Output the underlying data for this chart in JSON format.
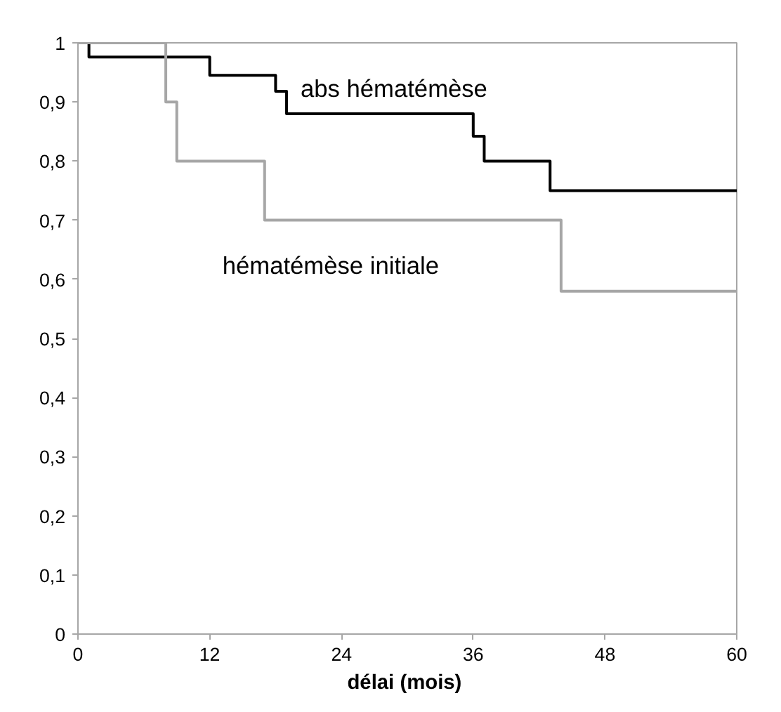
{
  "chart_data": {
    "type": "step",
    "xlabel": "délai  (mois)",
    "xlim": [
      0,
      60
    ],
    "xticks": [
      0,
      12,
      24,
      36,
      48,
      60
    ],
    "ylim": [
      0,
      1
    ],
    "yticks": [
      0,
      {
        "value": 0.1,
        "label": "0,1"
      },
      {
        "value": 0.2,
        "label": "0,2"
      },
      {
        "value": 0.3,
        "label": "0,3"
      },
      {
        "value": 0.4,
        "label": "0,4"
      },
      {
        "value": 0.5,
        "label": "0,5"
      },
      {
        "value": 0.6,
        "label": "0,6"
      },
      {
        "value": 0.7,
        "label": "0,7"
      },
      {
        "value": 0.8,
        "label": "0,8"
      },
      {
        "value": 0.9,
        "label": "0,9"
      },
      1
    ],
    "grid": false,
    "marker": "none",
    "line_style": "solid",
    "series": [
      {
        "name": "abs hématémèse",
        "color": "#000000",
        "x": [
          0,
          1,
          12,
          18,
          19,
          36,
          37,
          43,
          60
        ],
        "values": [
          1,
          0.976,
          0.945,
          0.918,
          0.88,
          0.842,
          0.8,
          0.75,
          0.75
        ]
      },
      {
        "name": "hématémèse initiale",
        "color": "#a6a6a6",
        "x": [
          0,
          8,
          9,
          17,
          44,
          60
        ],
        "values": [
          1,
          0.9,
          0.8,
          0.7,
          0.58,
          0.58
        ]
      }
    ]
  }
}
